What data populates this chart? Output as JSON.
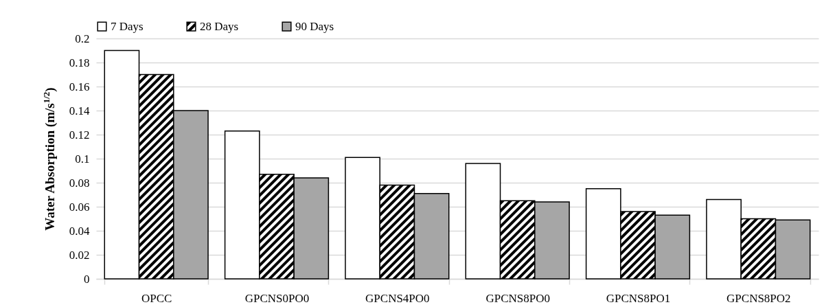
{
  "chart_data": {
    "type": "bar",
    "ylabel": "Water Absorption (m/s$^{1/2}$)",
    "categories": [
      "OPCC",
      "GPCNS0PO0",
      "GPCNS4PO0",
      "GPCNS8PO0",
      "GPCNS8PO1",
      "GPCNS8PO2"
    ],
    "series": [
      {
        "name": "7 Days",
        "color": "#ffffff",
        "values": [
          0.19,
          0.123,
          0.101,
          0.096,
          0.075,
          0.066
        ]
      },
      {
        "name": "28 Days",
        "color": "#000000",
        "values": [
          0.17,
          0.087,
          0.078,
          0.065,
          0.056,
          0.05
        ]
      },
      {
        "name": "90 Days",
        "color": "#a6a6a6",
        "values": [
          0.14,
          0.084,
          0.071,
          0.064,
          0.053,
          0.049
        ]
      }
    ],
    "ylim": [
      0,
      0.2
    ],
    "yticks": [
      0,
      0.02,
      0.04,
      0.06,
      0.08,
      0.1,
      0.12,
      0.14,
      0.16,
      0.18,
      0.2
    ],
    "grid": "y",
    "legend": "top"
  }
}
